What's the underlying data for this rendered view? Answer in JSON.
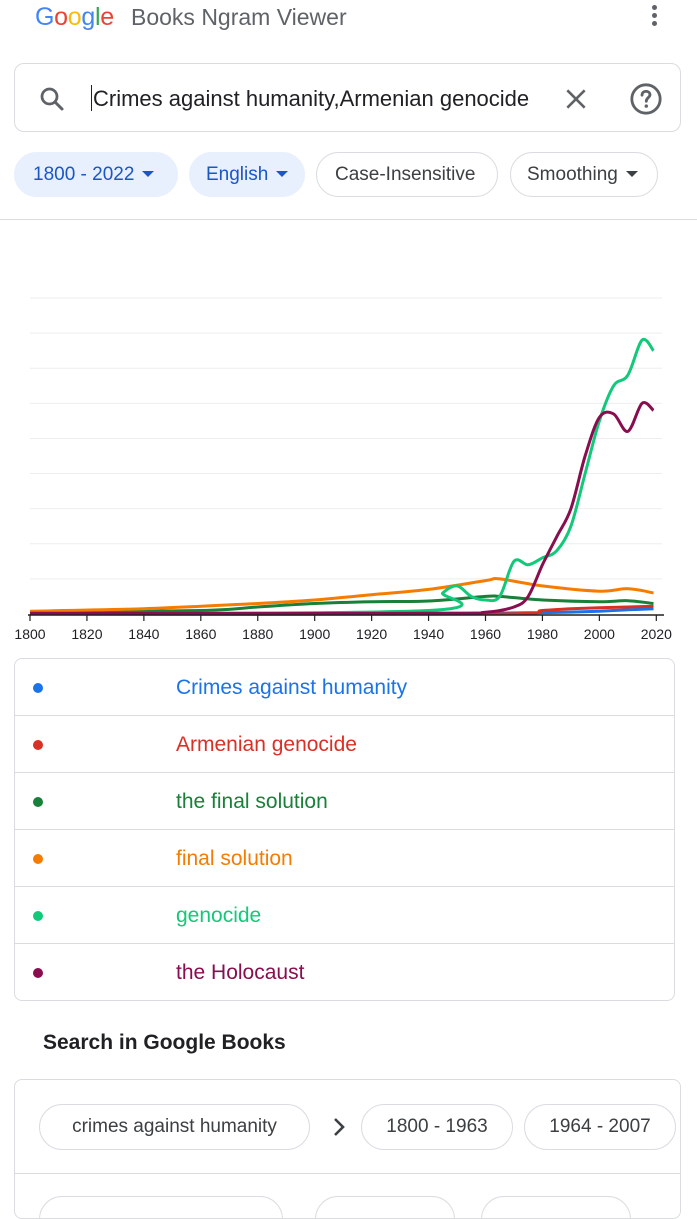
{
  "header": {
    "logo_letters": [
      {
        "ch": "G",
        "color": "#4285F4"
      },
      {
        "ch": "o",
        "color": "#EA4335"
      },
      {
        "ch": "o",
        "color": "#FBBC05"
      },
      {
        "ch": "g",
        "color": "#4285F4"
      },
      {
        "ch": "l",
        "color": "#34A853"
      },
      {
        "ch": "e",
        "color": "#EA4335"
      }
    ],
    "app_name": "Books Ngram Viewer",
    "menu_icon": "more-vert-icon"
  },
  "search": {
    "value": "Crimes against humanity,Armenian genocide",
    "search_icon": "search-icon",
    "clear_icon": "close-icon",
    "help_icon": "help-icon"
  },
  "filters": {
    "year_range": "1800 - 2022",
    "language": "English",
    "case": "Case-Insensitive",
    "smoothing": "Smoothing"
  },
  "chart_data": {
    "type": "line",
    "x_ticks": [
      "1800",
      "1820",
      "1840",
      "1860",
      "1880",
      "1900",
      "1920",
      "1940",
      "1960",
      "1980",
      "2000",
      "2020"
    ],
    "xlim": [
      1800,
      2022
    ],
    "ylim": [
      0,
      9
    ],
    "grid": true,
    "series": [
      {
        "name": "Crimes against humanity",
        "color": "#1a73e8",
        "x": [
          1800,
          1940,
          1980,
          2000,
          2010,
          2019
        ],
        "y": [
          0.02,
          0.02,
          0.04,
          0.08,
          0.12,
          0.15
        ]
      },
      {
        "name": "Armenian genocide",
        "color": "#d93025",
        "x": [
          1800,
          1960,
          1980,
          1990,
          2000,
          2010,
          2019
        ],
        "y": [
          0,
          0,
          0.1,
          0.15,
          0.18,
          0.2,
          0.22
        ]
      },
      {
        "name": "the final solution",
        "color": "#188038",
        "x": [
          1800,
          1860,
          1880,
          1900,
          1920,
          1940,
          1960,
          1965,
          1980,
          2000,
          2010,
          2019
        ],
        "y": [
          0.05,
          0.1,
          0.2,
          0.3,
          0.35,
          0.37,
          0.5,
          0.5,
          0.4,
          0.35,
          0.38,
          0.3
        ]
      },
      {
        "name": "final solution",
        "color": "#f57c00",
        "x": [
          1800,
          1840,
          1880,
          1900,
          1920,
          1940,
          1960,
          1965,
          1980,
          2000,
          2010,
          2019
        ],
        "y": [
          0.08,
          0.15,
          0.3,
          0.4,
          0.55,
          0.7,
          0.95,
          1.0,
          0.8,
          0.65,
          0.72,
          0.6
        ]
      },
      {
        "name": "genocide",
        "color": "#12c97a",
        "x": [
          1800,
          1940,
          1945,
          1950,
          1955,
          1960,
          1965,
          1970,
          1975,
          1980,
          1985,
          1990,
          1995,
          2000,
          2005,
          2010,
          2015,
          2019
        ],
        "y": [
          0,
          0.1,
          0.6,
          0.8,
          0.5,
          0.4,
          0.5,
          1.5,
          1.4,
          1.6,
          1.8,
          2.5,
          4.0,
          5.5,
          6.5,
          6.8,
          7.8,
          7.5
        ]
      },
      {
        "name": "the Holocaust",
        "color": "#880e4f",
        "x": [
          1800,
          1940,
          1960,
          1970,
          1975,
          1980,
          1985,
          1990,
          1995,
          2000,
          2005,
          2010,
          2015,
          2019
        ],
        "y": [
          0.02,
          0.02,
          0.05,
          0.2,
          0.5,
          1.4,
          2.2,
          3.0,
          4.5,
          5.6,
          5.7,
          5.2,
          6.0,
          5.8
        ]
      }
    ]
  },
  "books_section": {
    "title": "Search in Google Books",
    "query_chip": "crimes against humanity",
    "chevron_icon": "chevron-right-icon",
    "range_1": "1800 - 1963",
    "range_2": "1964 - 2007"
  }
}
